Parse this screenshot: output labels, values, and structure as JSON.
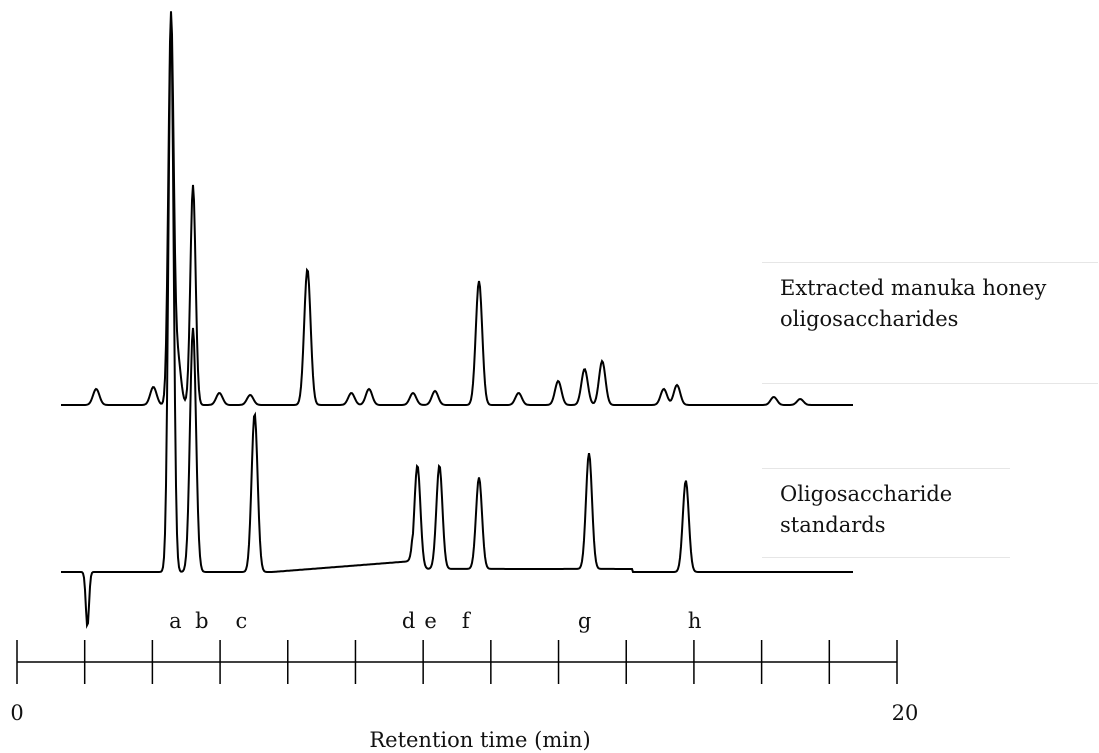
{
  "chart_data": {
    "type": "line",
    "xlabel": "Retention time (min)",
    "xlim": [
      0,
      20
    ],
    "xticks_labeled": [
      "0",
      "20"
    ],
    "series": [
      {
        "name": "Extracted manuka honey oligosaccharides",
        "line1": "Extracted manuka honey",
        "line2": "oligosaccharides",
        "baseline": 0.03,
        "peaks": [
          {
            "x": 1.8,
            "h": 0.04
          },
          {
            "x": 3.1,
            "h": 0.045
          },
          {
            "x": 3.5,
            "h": 0.97
          },
          {
            "x": 3.65,
            "h": 0.12
          },
          {
            "x": 4.0,
            "h": 0.55
          },
          {
            "x": 4.6,
            "h": 0.03
          },
          {
            "x": 5.3,
            "h": 0.025
          },
          {
            "x": 6.6,
            "h": 0.34
          },
          {
            "x": 7.6,
            "h": 0.03
          },
          {
            "x": 8.0,
            "h": 0.04
          },
          {
            "x": 9.0,
            "h": 0.03
          },
          {
            "x": 9.5,
            "h": 0.035
          },
          {
            "x": 10.5,
            "h": 0.31
          },
          {
            "x": 11.4,
            "h": 0.03
          },
          {
            "x": 12.3,
            "h": 0.06
          },
          {
            "x": 12.9,
            "h": 0.09
          },
          {
            "x": 13.3,
            "h": 0.11
          },
          {
            "x": 14.7,
            "h": 0.04
          },
          {
            "x": 15.0,
            "h": 0.05
          },
          {
            "x": 17.2,
            "h": 0.02
          },
          {
            "x": 17.8,
            "h": 0.015
          }
        ]
      },
      {
        "name": "Oligosaccharide standards",
        "line1": "Oligosaccharide",
        "line2": "standards",
        "baseline": 0.0,
        "dip": {
          "x": 1.6,
          "depth": 0.09
        },
        "peaks": [
          {
            "label": "a",
            "x": 3.5,
            "h": 0.9
          },
          {
            "label": "b",
            "x": 4.0,
            "h": 0.4
          },
          {
            "label": "c",
            "x": 5.4,
            "h": 0.26
          },
          {
            "label": "d",
            "x": 9.1,
            "h": 0.17
          },
          {
            "label": "e",
            "x": 9.6,
            "h": 0.17
          },
          {
            "label": "f",
            "x": 10.5,
            "h": 0.15
          },
          {
            "label": "g",
            "x": 13.0,
            "h": 0.19
          },
          {
            "label": "h",
            "x": 15.2,
            "h": 0.15
          }
        ]
      }
    ],
    "peak_labels": [
      {
        "text": "a",
        "x": 3.6
      },
      {
        "text": "b",
        "x": 4.2
      },
      {
        "text": "c",
        "x": 5.1
      },
      {
        "text": "d",
        "x": 8.9
      },
      {
        "text": "e",
        "x": 9.4
      },
      {
        "text": "f",
        "x": 10.2
      },
      {
        "text": "g",
        "x": 12.9
      },
      {
        "text": "h",
        "x": 15.4
      }
    ]
  }
}
